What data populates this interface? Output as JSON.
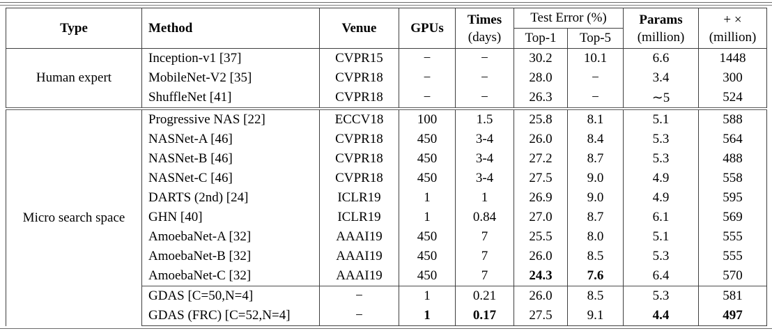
{
  "table": {
    "headers": {
      "type": "Type",
      "method": "Method",
      "venue": "Venue",
      "gpus": "GPUs",
      "times_line1": "Times",
      "times_line2": "(days)",
      "test_error": "Test Error (%)",
      "top1": "Top-1",
      "top5": "Top-5",
      "params_line1": "Params",
      "params_line2": "(million)",
      "flops_line1": "+ ×",
      "flops_line2": "(million)"
    },
    "sections": [
      {
        "type": "Human expert",
        "rows": [
          {
            "method": "Inception-v1 [37]",
            "venue": "CVPR15",
            "gpus": "−",
            "times": "−",
            "top1": "30.2",
            "top5": "10.1",
            "params": "6.6",
            "flops": "1448",
            "bold": []
          },
          {
            "method": "MobileNet-V2 [35]",
            "venue": "CVPR18",
            "gpus": "−",
            "times": "−",
            "top1": "28.0",
            "top5": "−",
            "params": "3.4",
            "flops": "300",
            "bold": []
          },
          {
            "method": "ShuffleNet [41]",
            "venue": "CVPR18",
            "gpus": "−",
            "times": "−",
            "top1": "26.3",
            "top5": "−",
            "params": "∼5",
            "flops": "524",
            "bold": []
          }
        ]
      },
      {
        "type": "Micro search space",
        "rows": [
          {
            "method": "Progressive NAS [22]",
            "venue": "ECCV18",
            "gpus": "100",
            "times": "1.5",
            "top1": "25.8",
            "top5": "8.1",
            "params": "5.1",
            "flops": "588",
            "bold": []
          },
          {
            "method": "NASNet-A [46]",
            "venue": "CVPR18",
            "gpus": "450",
            "times": "3-4",
            "top1": "26.0",
            "top5": "8.4",
            "params": "5.3",
            "flops": "564",
            "bold": []
          },
          {
            "method": "NASNet-B [46]",
            "venue": "CVPR18",
            "gpus": "450",
            "times": "3-4",
            "top1": "27.2",
            "top5": "8.7",
            "params": "5.3",
            "flops": "488",
            "bold": []
          },
          {
            "method": "NASNet-C [46]",
            "venue": "CVPR18",
            "gpus": "450",
            "times": "3-4",
            "top1": "27.5",
            "top5": "9.0",
            "params": "4.9",
            "flops": "558",
            "bold": []
          },
          {
            "method": "DARTS (2nd) [24]",
            "venue": "ICLR19",
            "gpus": "1",
            "times": "1",
            "top1": "26.9",
            "top5": "9.0",
            "params": "4.9",
            "flops": "595",
            "bold": []
          },
          {
            "method": "GHN [40]",
            "venue": "ICLR19",
            "gpus": "1",
            "times": "0.84",
            "top1": "27.0",
            "top5": "8.7",
            "params": "6.1",
            "flops": "569",
            "bold": []
          },
          {
            "method": "AmoebaNet-A [32]",
            "venue": "AAAI19",
            "gpus": "450",
            "times": "7",
            "top1": "25.5",
            "top5": "8.0",
            "params": "5.1",
            "flops": "555",
            "bold": []
          },
          {
            "method": "AmoebaNet-B [32]",
            "venue": "AAAI19",
            "gpus": "450",
            "times": "7",
            "top1": "26.0",
            "top5": "8.5",
            "params": "5.3",
            "flops": "555",
            "bold": []
          },
          {
            "method": "AmoebaNet-C [32]",
            "venue": "AAAI19",
            "gpus": "450",
            "times": "7",
            "top1": "24.3",
            "top5": "7.6",
            "params": "6.4",
            "flops": "570",
            "bold": [
              "top1",
              "top5"
            ]
          },
          {
            "method": "GDAS [C=50,N=4]",
            "venue": "−",
            "gpus": "1",
            "times": "0.21",
            "top1": "26.0",
            "top5": "8.5",
            "params": "5.3",
            "flops": "581",
            "bold": [],
            "cline_before": true
          },
          {
            "method": "GDAS (FRC) [C=52,N=4]",
            "venue": "−",
            "gpus": "1",
            "times": "0.17",
            "top1": "27.5",
            "top5": "9.1",
            "params": "4.4",
            "flops": "497",
            "bold": [
              "gpus",
              "times",
              "params",
              "flops"
            ]
          }
        ]
      }
    ]
  }
}
